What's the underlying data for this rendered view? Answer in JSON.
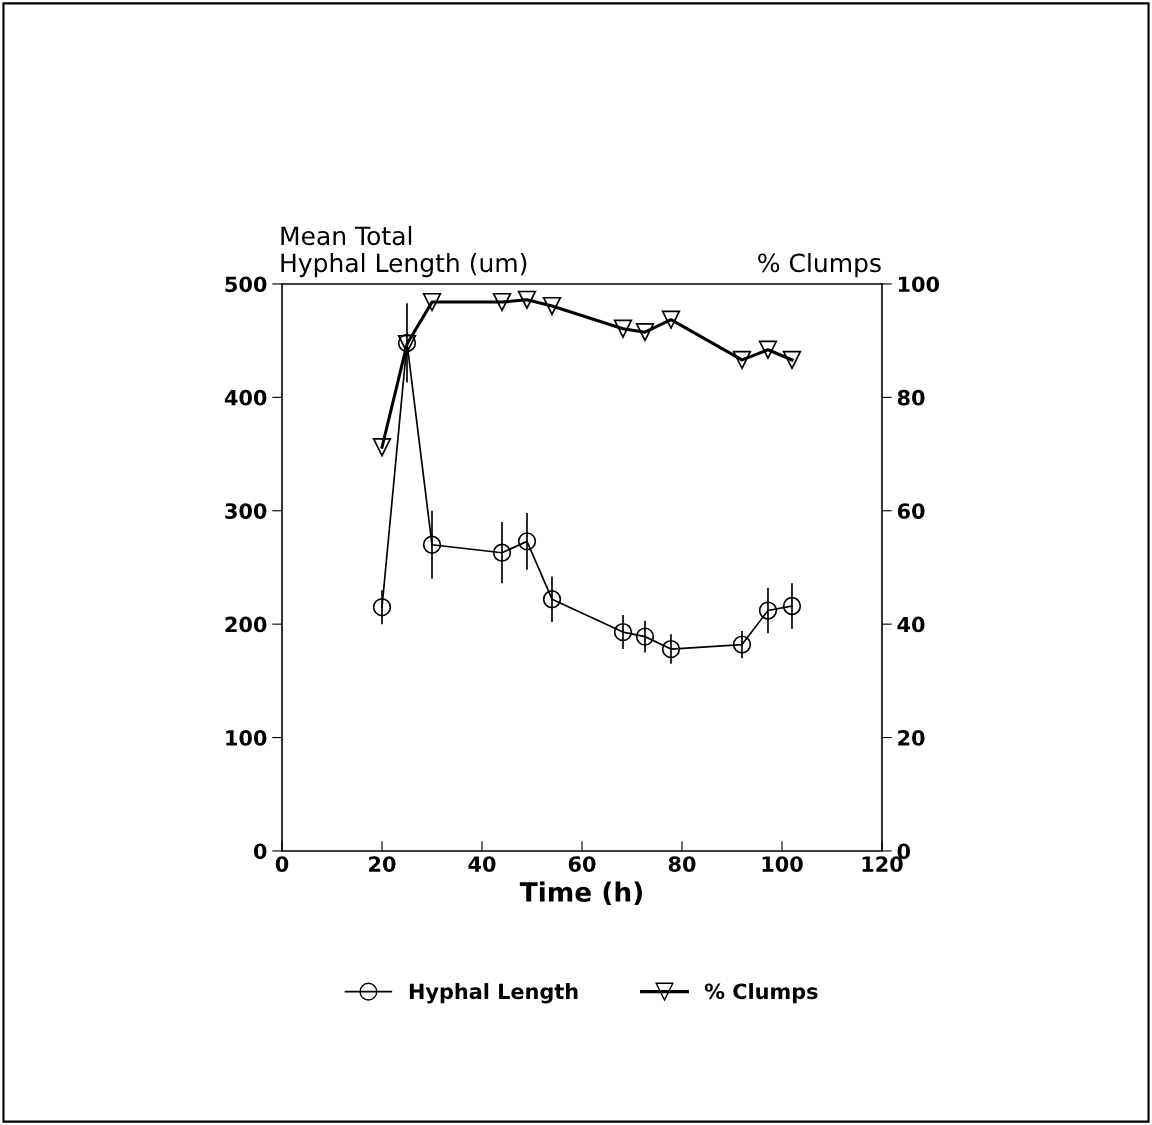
{
  "chart_data": {
    "type": "line",
    "xlabel": "Time (h)",
    "ylabel": "Mean Total\nHyphal Length (um)",
    "y2label": "% Clumps",
    "xlim": [
      0,
      120
    ],
    "xticks": [
      0,
      20,
      40,
      60,
      80,
      100,
      120
    ],
    "ylim": [
      0,
      500
    ],
    "yticks": [
      0,
      100,
      200,
      300,
      400,
      500
    ],
    "y2lim": [
      0,
      100
    ],
    "y2ticks": [
      0,
      20,
      40,
      60,
      80,
      100
    ],
    "grid": false,
    "legend": "bottom",
    "series": [
      {
        "name": "Hyphal Length",
        "color": "#000000",
        "marker": "circle",
        "axis": "y",
        "x": [
          20,
          25,
          30,
          44,
          49,
          54,
          68.2,
          72.6,
          77.8,
          92,
          97.2,
          102
        ],
        "values": [
          215,
          448,
          270,
          263,
          273,
          222,
          193,
          189,
          178,
          182,
          212,
          216
        ],
        "errors": [
          15,
          35,
          30,
          27,
          25,
          20,
          15,
          14,
          13,
          12,
          20,
          20
        ]
      },
      {
        "name": "% Clumps",
        "color": "#000000",
        "marker": "triangle",
        "axis": "y2",
        "x": [
          20,
          25,
          30,
          44,
          49,
          54,
          68.2,
          72.6,
          77.8,
          92,
          97.2,
          102
        ],
        "values": [
          71.2,
          89.4,
          96.8,
          96.8,
          97.2,
          96.1,
          92.1,
          91.5,
          93.7,
          86.6,
          88.4,
          86.6
        ]
      }
    ]
  }
}
